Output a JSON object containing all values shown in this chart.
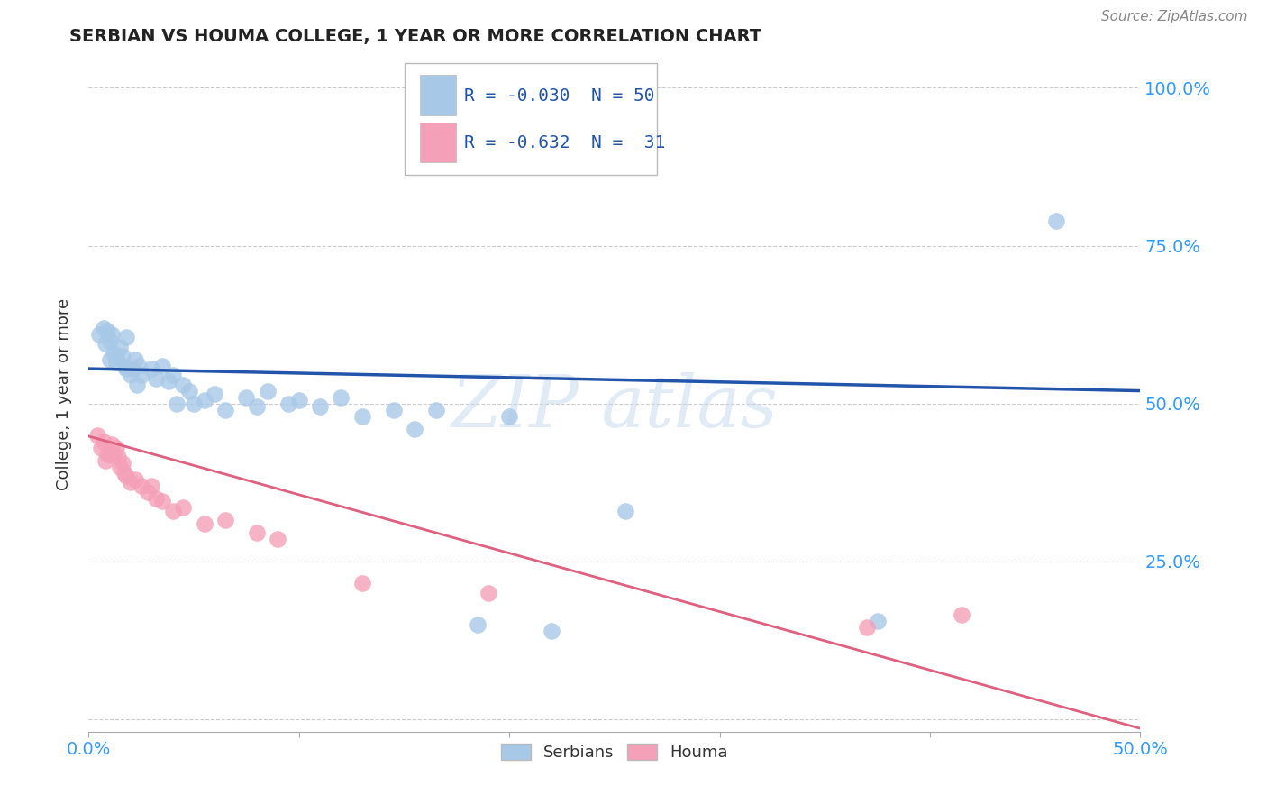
{
  "title": "SERBIAN VS HOUMA COLLEGE, 1 YEAR OR MORE CORRELATION CHART",
  "source": "Source: ZipAtlas.com",
  "ylabel": "College, 1 year or more",
  "xlim": [
    0.0,
    0.5
  ],
  "ylim": [
    -0.02,
    1.05
  ],
  "xticks": [
    0.0,
    0.1,
    0.2,
    0.3,
    0.4,
    0.5
  ],
  "xtick_labels": [
    "0.0%",
    "",
    "",
    "",
    "",
    "50.0%"
  ],
  "yticks": [
    0.0,
    0.25,
    0.5,
    0.75,
    1.0
  ],
  "ytick_labels": [
    "",
    "25.0%",
    "50.0%",
    "75.0%",
    "100.0%"
  ],
  "serbian_color": "#A8C8E8",
  "houma_color": "#F4A0B8",
  "serbian_line_color": "#2255AA",
  "houma_line_color": "#E06080",
  "legend": {
    "serbian_R": "-0.030",
    "serbian_N": "50",
    "houma_R": "-0.632",
    "houma_N": "31"
  },
  "serbian_x": [
    0.005,
    0.007,
    0.008,
    0.009,
    0.01,
    0.01,
    0.011,
    0.012,
    0.013,
    0.013,
    0.015,
    0.016,
    0.017,
    0.018,
    0.018,
    0.02,
    0.021,
    0.022,
    0.023,
    0.024,
    0.025,
    0.03,
    0.032,
    0.035,
    0.038,
    0.04,
    0.042,
    0.045,
    0.048,
    0.05,
    0.055,
    0.06,
    0.065,
    0.075,
    0.08,
    0.085,
    0.095,
    0.1,
    0.11,
    0.12,
    0.13,
    0.145,
    0.155,
    0.165,
    0.185,
    0.2,
    0.22,
    0.255,
    0.375,
    0.46
  ],
  "serbian_y": [
    0.61,
    0.62,
    0.595,
    0.615,
    0.57,
    0.6,
    0.61,
    0.58,
    0.575,
    0.565,
    0.59,
    0.575,
    0.56,
    0.555,
    0.605,
    0.545,
    0.555,
    0.57,
    0.53,
    0.56,
    0.545,
    0.555,
    0.54,
    0.56,
    0.535,
    0.545,
    0.5,
    0.53,
    0.52,
    0.5,
    0.505,
    0.515,
    0.49,
    0.51,
    0.495,
    0.52,
    0.5,
    0.505,
    0.495,
    0.51,
    0.48,
    0.49,
    0.46,
    0.49,
    0.15,
    0.48,
    0.14,
    0.33,
    0.155,
    0.79
  ],
  "houma_x": [
    0.004,
    0.006,
    0.007,
    0.008,
    0.009,
    0.01,
    0.011,
    0.012,
    0.013,
    0.014,
    0.015,
    0.016,
    0.017,
    0.018,
    0.02,
    0.022,
    0.025,
    0.028,
    0.03,
    0.032,
    0.035,
    0.04,
    0.045,
    0.055,
    0.065,
    0.08,
    0.09,
    0.13,
    0.19,
    0.37,
    0.415
  ],
  "houma_y": [
    0.45,
    0.43,
    0.44,
    0.41,
    0.42,
    0.42,
    0.435,
    0.42,
    0.43,
    0.415,
    0.4,
    0.405,
    0.39,
    0.385,
    0.375,
    0.38,
    0.37,
    0.36,
    0.37,
    0.35,
    0.345,
    0.33,
    0.335,
    0.31,
    0.315,
    0.295,
    0.285,
    0.215,
    0.2,
    0.145,
    0.165
  ],
  "blue_line_x0": 0.0,
  "blue_line_y0": 0.555,
  "blue_line_x1": 0.5,
  "blue_line_y1": 0.52,
  "pink_line_x0": 0.0,
  "pink_line_y0": 0.448,
  "pink_line_x1": 0.5,
  "pink_line_y1": -0.015
}
